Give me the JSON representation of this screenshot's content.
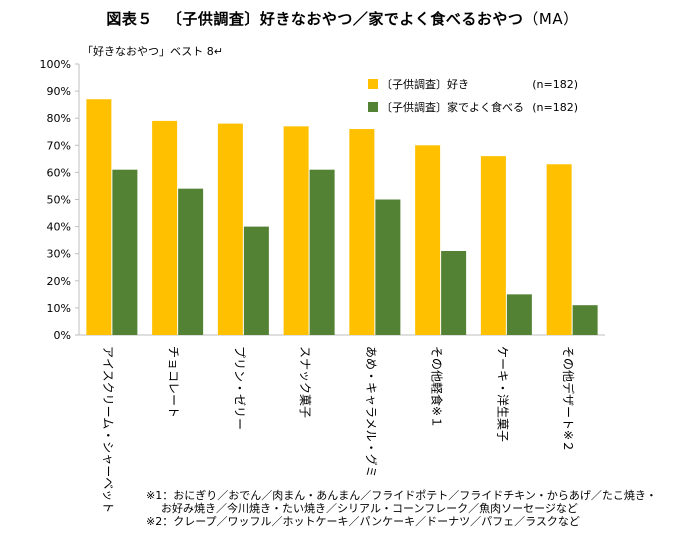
{
  "header": {
    "title_label": "図表５",
    "title_text": "〔子供調査〕好きなおやつ／家でよく食べるおやつ",
    "title_suffix": "（MA）",
    "subtitle": "「好きなおやつ」ベスト 8↵"
  },
  "chart_data": {
    "type": "bar",
    "categories": [
      "アイスクリーム・シャーベット",
      "チョコレート",
      "プリン・ゼリー",
      "スナック菓子",
      "あめ・キャラメル・グミ",
      "その他軽食※１",
      "ケーキ・洋生菓子",
      "その他デザート※２"
    ],
    "series": [
      {
        "name": "〔子供調査〕好き",
        "n_label": "(n=182)",
        "color": "#FFC000",
        "values": [
          87,
          79,
          78,
          77,
          76,
          70,
          66,
          63
        ]
      },
      {
        "name": "〔子供調査〕家でよく食べる",
        "n_label": "(n=182)",
        "color": "#548235",
        "values": [
          61,
          54,
          40,
          61,
          50,
          31,
          15,
          11
        ]
      }
    ],
    "y_ticks": [
      "0%",
      "10%",
      "20%",
      "30%",
      "40%",
      "50%",
      "60%",
      "70%",
      "80%",
      "90%",
      "100%"
    ],
    "ylim": [
      0,
      100
    ],
    "grid": false,
    "legend": "top-right"
  },
  "notes": {
    "line1": "※1：おにぎり／おでん／肉まん・あんまん／フライドポテト／フライドチキン・からあげ／たこ焼き・",
    "line2": "お好み焼き／今川焼き・たい焼き／シリアル・コーンフレーク／魚肉ソーセージなど",
    "line3": "※2：クレープ／ワッフル／ホットケーキ／パンケーキ／ドーナツ／パフェ／ラスクなど"
  }
}
